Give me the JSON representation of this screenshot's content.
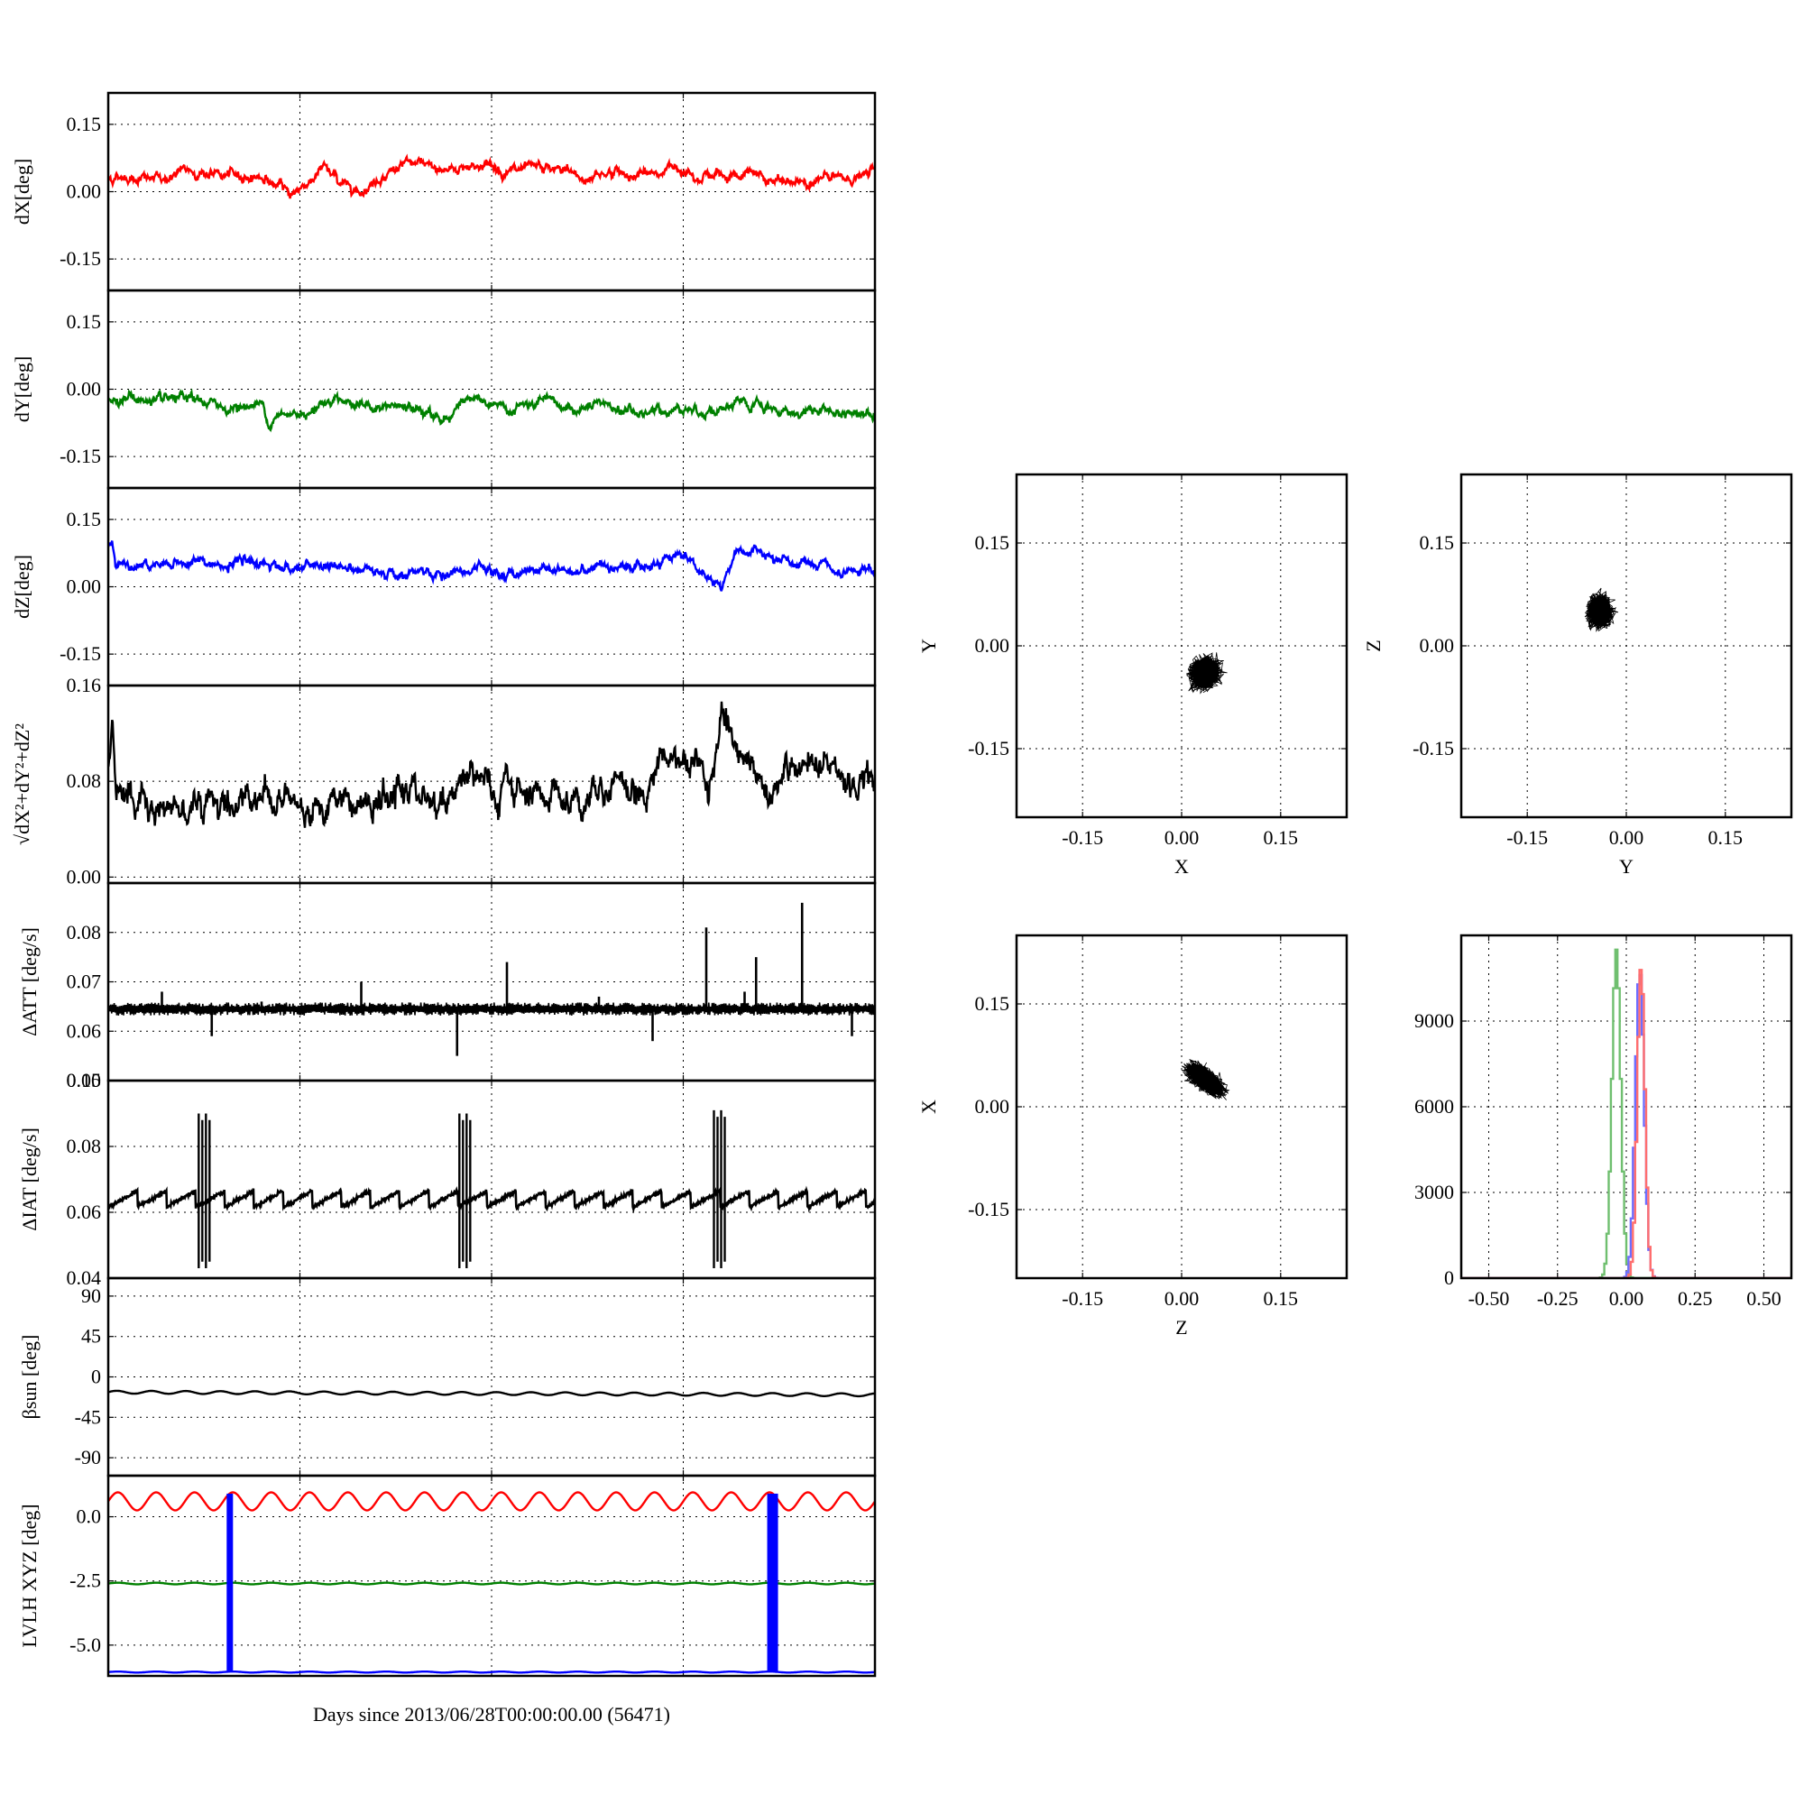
{
  "chart_data": [
    {
      "id": "dX",
      "type": "line",
      "ylabel": "dX[deg]",
      "ylim": [
        -0.22,
        0.22
      ],
      "yticks": [
        0.15,
        0.0,
        -0.15
      ],
      "ytick_labels": [
        "0.15",
        "0.00",
        "-0.15"
      ],
      "xlim": [
        0,
        1
      ],
      "grid": true,
      "series": [
        {
          "color": "#ff0000",
          "mean": 0.035,
          "amplitude": 0.012,
          "noise": 0.006,
          "anchors": {
            "x": [
              0,
              0.05,
              0.1,
              0.15,
              0.2,
              0.22,
              0.24,
              0.28,
              0.3,
              0.33,
              0.36,
              0.4,
              0.45,
              0.5,
              0.55,
              0.6,
              0.62,
              0.65,
              0.7,
              0.75,
              0.8,
              0.85,
              0.9,
              0.95,
              1.0
            ],
            "y": [
              0.03,
              0.03,
              0.04,
              0.04,
              0.03,
              0.01,
              0.0,
              0.05,
              0.02,
              0.01,
              0.04,
              0.06,
              0.05,
              0.06,
              0.04,
              0.05,
              0.03,
              0.04,
              0.04,
              0.05,
              0.04,
              0.03,
              0.02,
              0.03,
              0.04
            ]
          }
        }
      ]
    },
    {
      "id": "dY",
      "type": "line",
      "ylabel": "dY[deg]",
      "ylim": [
        -0.22,
        0.22
      ],
      "yticks": [
        0.15,
        0.0,
        -0.15
      ],
      "ytick_labels": [
        "0.15",
        "0.00",
        "-0.15"
      ],
      "xlim": [
        0,
        1
      ],
      "grid": true,
      "series": [
        {
          "color": "#008000",
          "mean": -0.04,
          "amplitude": 0.012,
          "noise": 0.006,
          "anchors": {
            "x": [
              0,
              0.1,
              0.2,
              0.21,
              0.3,
              0.35,
              0.45,
              0.46,
              0.5,
              0.6,
              0.7,
              0.8,
              0.9,
              1.0
            ],
            "y": [
              -0.02,
              -0.03,
              -0.04,
              -0.07,
              -0.02,
              -0.04,
              -0.06,
              -0.02,
              -0.04,
              -0.04,
              -0.05,
              -0.04,
              -0.05,
              -0.05
            ]
          }
        }
      ]
    },
    {
      "id": "dZ",
      "type": "line",
      "ylabel": "dZ[deg]",
      "ylim": [
        -0.22,
        0.22
      ],
      "yticks": [
        0.15,
        0.0,
        -0.15
      ],
      "ytick_labels": [
        "0.15",
        "0.00",
        "-0.15"
      ],
      "xlim": [
        0,
        1
      ],
      "grid": true,
      "series": [
        {
          "color": "#0000ff",
          "mean": 0.05,
          "amplitude": 0.012,
          "noise": 0.006,
          "anchors": {
            "x": [
              0,
              0.005,
              0.01,
              0.2,
              0.3,
              0.4,
              0.5,
              0.6,
              0.7,
              0.75,
              0.78,
              0.8,
              0.82,
              0.9,
              0.95,
              1.0
            ],
            "y": [
              0.09,
              0.11,
              0.05,
              0.05,
              0.04,
              0.03,
              0.03,
              0.04,
              0.05,
              0.07,
              0.03,
              0.0,
              0.08,
              0.05,
              0.03,
              0.03
            ]
          }
        }
      ]
    },
    {
      "id": "dR",
      "type": "line",
      "ylabel": "√dX²+dY²+dZ²",
      "ylim": [
        -0.005,
        0.16
      ],
      "yticks": [
        0.16,
        0.08,
        0.0
      ],
      "ytick_labels": [
        "0.16",
        "0.08",
        "0.00"
      ],
      "xlim": [
        0,
        1
      ],
      "grid": true,
      "series": [
        {
          "color": "#000000",
          "mean": 0.07,
          "amplitude": 0.012,
          "noise": 0.007,
          "anchors": {
            "x": [
              0,
              0.005,
              0.01,
              0.1,
              0.2,
              0.3,
              0.45,
              0.47,
              0.5,
              0.6,
              0.7,
              0.72,
              0.78,
              0.8,
              0.82,
              0.9,
              1.0
            ],
            "y": [
              0.09,
              0.11,
              0.07,
              0.06,
              0.07,
              0.06,
              0.07,
              0.09,
              0.07,
              0.07,
              0.08,
              0.1,
              0.09,
              0.13,
              0.09,
              0.08,
              0.08
            ]
          }
        }
      ]
    },
    {
      "id": "dATT",
      "type": "line",
      "ylabel": "ΔATT [deg/s]",
      "ylim": [
        0.05,
        0.09
      ],
      "yticks": [
        0.08,
        0.07,
        0.06,
        0.05
      ],
      "ytick_labels": [
        "0.08",
        "0.07",
        "0.06",
        "0.05"
      ],
      "xlim": [
        0,
        1
      ],
      "grid": true,
      "series": [
        {
          "color": "#000000",
          "mean": 0.0645,
          "amplitude": 0.0,
          "noise": 0.0012,
          "spikes": [
            [
              0.07,
              0.068
            ],
            [
              0.135,
              0.059
            ],
            [
              0.2,
              0.066
            ],
            [
              0.33,
              0.07
            ],
            [
              0.455,
              0.055
            ],
            [
              0.52,
              0.074
            ],
            [
              0.64,
              0.067
            ],
            [
              0.71,
              0.058
            ],
            [
              0.78,
              0.081
            ],
            [
              0.83,
              0.068
            ],
            [
              0.845,
              0.075
            ],
            [
              0.905,
              0.086
            ],
            [
              0.97,
              0.059
            ]
          ]
        }
      ]
    },
    {
      "id": "dIAT",
      "type": "line",
      "ylabel": "ΔIAT [deg/s]",
      "ylim": [
        0.04,
        0.1
      ],
      "yticks": [
        0.1,
        0.08,
        0.06,
        0.04
      ],
      "ytick_labels": [
        "0.10",
        "0.08",
        "0.06",
        "0.04"
      ],
      "xlim": [
        0,
        1
      ],
      "grid": true,
      "series": [
        {
          "color": "#000000",
          "mean": 0.064,
          "sawtooth": 0.0025,
          "period": 0.038,
          "bursts": [
            [
              0.118,
              0.043,
              0.09
            ],
            [
              0.458,
              0.043,
              0.09
            ],
            [
              0.79,
              0.043,
              0.091
            ]
          ]
        }
      ]
    },
    {
      "id": "beta",
      "type": "line",
      "ylabel": "βsun [deg]",
      "ylim": [
        -110,
        110
      ],
      "yticks": [
        90,
        45,
        0,
        -45,
        -90
      ],
      "ytick_labels": [
        "90",
        "45",
        "0",
        "-45",
        "-90"
      ],
      "xlim": [
        0,
        1
      ],
      "grid": true,
      "series": [
        {
          "color": "#000000",
          "mean": -17,
          "amplitude": 1.6,
          "period": 0.045,
          "trend": -3
        }
      ]
    },
    {
      "id": "lvlh",
      "type": "line",
      "ylabel": "LVLH XYZ [deg]",
      "ylim": [
        -6.2,
        1.6
      ],
      "yticks": [
        0.0,
        -2.5,
        -5.0
      ],
      "ytick_labels": [
        "0.0",
        "-2.5",
        "-5.0"
      ],
      "xlim": [
        0,
        1
      ],
      "grid": true,
      "xlabel": "Days since 2013/06/28T00:00:00.00 (56471)",
      "series": [
        {
          "color": "#ff0000",
          "mean": 0.6,
          "amplitude": 0.35,
          "period": 0.05
        },
        {
          "color": "#008000",
          "mean": -2.6,
          "amplitude": 0.03,
          "period": 0.05
        },
        {
          "color": "#0000ff",
          "mean": -6.05,
          "amplitude": 0.02,
          "period": 0.05
        }
      ],
      "bars": [
        {
          "x": 0.158,
          "y0": -6.05,
          "y1": 0.9,
          "color": "#0000ff"
        },
        {
          "x": 0.863,
          "y0": -6.05,
          "y1": 0.9,
          "color": "#0000ff"
        }
      ]
    },
    {
      "id": "XY",
      "type": "scatter",
      "xlabel": "X",
      "ylabel": "Y",
      "xlim": [
        -0.25,
        0.25
      ],
      "ylim": [
        -0.25,
        0.25
      ],
      "xticks": [
        -0.15,
        0.0,
        0.15
      ],
      "xtick_labels": [
        "-0.15",
        "0.00",
        "0.15"
      ],
      "yticks": [
        0.15,
        0.0,
        -0.15
      ],
      "ytick_labels": [
        "0.15",
        "0.00",
        "-0.15"
      ],
      "grid": true,
      "cloud": {
        "cx": 0.035,
        "cy": -0.04,
        "sx": 0.016,
        "sy": 0.016,
        "rho": 0.1,
        "color": "#000000"
      }
    },
    {
      "id": "YZ",
      "type": "scatter",
      "xlabel": "Y",
      "ylabel": "Z",
      "xlim": [
        -0.25,
        0.25
      ],
      "ylim": [
        -0.25,
        0.25
      ],
      "xticks": [
        -0.15,
        0.0,
        0.15
      ],
      "xtick_labels": [
        "-0.15",
        "0.00",
        "0.15"
      ],
      "yticks": [
        0.15,
        0.0,
        -0.15
      ],
      "ytick_labels": [
        "0.15",
        "0.00",
        "-0.15"
      ],
      "grid": true,
      "cloud": {
        "cx": -0.04,
        "cy": 0.05,
        "sx": 0.013,
        "sy": 0.016,
        "rho": 0.05,
        "color": "#000000"
      }
    },
    {
      "id": "ZX",
      "type": "scatter",
      "xlabel": "Z",
      "ylabel": "X",
      "xlim": [
        -0.25,
        0.25
      ],
      "ylim": [
        -0.25,
        0.25
      ],
      "xticks": [
        -0.15,
        0.0,
        0.15
      ],
      "xtick_labels": [
        "-0.15",
        "0.00",
        "0.15"
      ],
      "yticks": [
        0.15,
        0.0,
        -0.15
      ],
      "ytick_labels": [
        "0.15",
        "0.00",
        "-0.15"
      ],
      "grid": true,
      "cloud": {
        "cx": 0.035,
        "cy": 0.04,
        "sx": 0.02,
        "sy": 0.016,
        "rho": -0.65,
        "color": "#000000"
      }
    },
    {
      "id": "hist",
      "type": "line",
      "xlim": [
        -0.6,
        0.6
      ],
      "ylim": [
        0,
        12000
      ],
      "xticks": [
        -0.5,
        -0.25,
        0.0,
        0.25,
        0.5
      ],
      "xtick_labels": [
        "-0.50",
        "-0.25",
        "0.00",
        "0.25",
        "0.50"
      ],
      "yticks": [
        9000,
        6000,
        3000,
        0
      ],
      "ytick_labels": [
        "9000",
        "6000",
        "3000",
        "0"
      ],
      "grid": true,
      "series": [
        {
          "color": "#6fbf6f",
          "center": -0.04,
          "sigma": 0.016,
          "peak": 11500
        },
        {
          "color": "#6e6eff",
          "center": 0.045,
          "sigma": 0.016,
          "peak": 10800
        },
        {
          "color": "#ff6e6e",
          "center": 0.05,
          "sigma": 0.014,
          "peak": 10900
        }
      ]
    }
  ]
}
